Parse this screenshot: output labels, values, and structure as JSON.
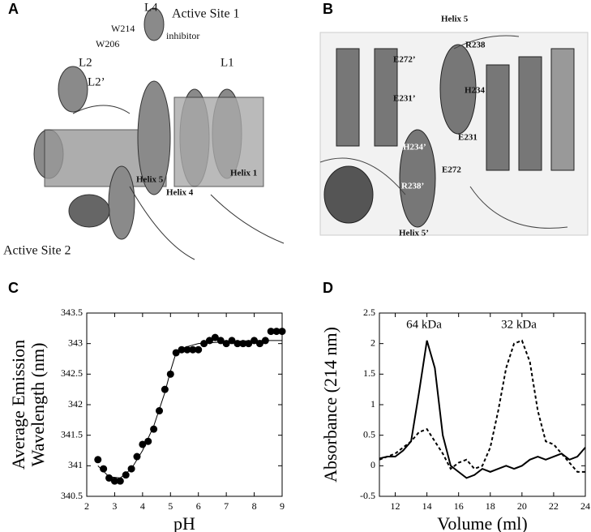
{
  "panels": [
    "A",
    "B",
    "C",
    "D"
  ],
  "structure_a": {
    "labels": [
      "L4",
      "Active Site 1",
      "W214",
      "W206",
      "inhibitor",
      "L2",
      "L1",
      "L2’",
      "Helix 5",
      "Helix 4",
      "Helix 1",
      "Active Site 2"
    ]
  },
  "structure_b": {
    "labels": [
      "Helix 5",
      "R238",
      "E272’",
      "E231’",
      "H234",
      "H234’",
      "E231",
      "E272",
      "R238’",
      "Helix 5’"
    ]
  },
  "chart_data": [
    {
      "type": "scatter",
      "xlabel": "pH",
      "ylabel_lines": [
        "Average Emission",
        "Wavelength (nm)"
      ],
      "xlim": [
        2,
        9
      ],
      "xticks": [
        2,
        3,
        4,
        5,
        6,
        7,
        8,
        9
      ],
      "ylim": [
        340.5,
        343.5
      ],
      "yticks": [
        340.5,
        341,
        341.5,
        342,
        342.5,
        343,
        343.5
      ],
      "series": [
        {
          "type": "scatter",
          "color": "#000000",
          "x": [
            2.4,
            2.6,
            2.8,
            3.0,
            3.2,
            3.4,
            3.6,
            3.8,
            4.0,
            4.2,
            4.4,
            4.6,
            4.8,
            5.0,
            5.2,
            5.4,
            5.6,
            5.8,
            6.0,
            6.2,
            6.4,
            6.6,
            6.8,
            7.0,
            7.2,
            7.4,
            7.6,
            7.8,
            8.0,
            8.2,
            8.4,
            8.6,
            8.8,
            9.0
          ],
          "values": [
            341.1,
            340.95,
            340.8,
            340.75,
            340.75,
            340.85,
            340.95,
            341.15,
            341.35,
            341.4,
            341.6,
            341.9,
            342.25,
            342.5,
            342.85,
            342.9,
            342.9,
            342.9,
            342.9,
            343.0,
            343.05,
            343.1,
            343.05,
            343.0,
            343.05,
            343.0,
            343.0,
            343.0,
            343.05,
            343.0,
            343.05,
            343.2,
            343.2,
            343.2
          ]
        },
        {
          "type": "line",
          "color": "#000000",
          "dash": false,
          "x": [
            2.4,
            2.8,
            3.2,
            3.6,
            4.0,
            4.4,
            4.8,
            5.0,
            5.2,
            5.6,
            6.0,
            7.0,
            8.0,
            9.0
          ],
          "values": [
            341.0,
            340.82,
            340.8,
            340.95,
            341.25,
            341.65,
            342.2,
            342.55,
            342.85,
            342.95,
            343.0,
            343.03,
            343.05,
            343.05
          ]
        }
      ]
    },
    {
      "type": "line",
      "xlabel": "Volume (ml)",
      "ylabel_lines": [
        "Absorbance (214 nm)"
      ],
      "xlim": [
        11,
        24
      ],
      "xticks": [
        12,
        14,
        16,
        18,
        20,
        22,
        24
      ],
      "ylim": [
        -0.5,
        2.5
      ],
      "yticks": [
        -0.5,
        0,
        0.5,
        1,
        1.5,
        2,
        2.5
      ],
      "annotations": [
        "64 kDa",
        "32 kDa"
      ],
      "series": [
        {
          "type": "line",
          "color": "#000000",
          "dash": false,
          "x": [
            11,
            11.5,
            12,
            12.5,
            13,
            13.5,
            14,
            14.5,
            15,
            15.5,
            16,
            16.5,
            17,
            17.5,
            18,
            18.5,
            19,
            19.5,
            20,
            20.5,
            21,
            21.5,
            22,
            22.5,
            23,
            23.5,
            24
          ],
          "values": [
            0.12,
            0.15,
            0.15,
            0.25,
            0.4,
            1.2,
            2.05,
            1.6,
            0.5,
            0.0,
            -0.1,
            -0.2,
            -0.15,
            -0.05,
            -0.1,
            -0.05,
            0.0,
            -0.05,
            0.0,
            0.1,
            0.15,
            0.1,
            0.15,
            0.2,
            0.1,
            0.15,
            0.3
          ]
        },
        {
          "type": "line",
          "color": "#000000",
          "dash": true,
          "x": [
            11,
            11.5,
            12,
            12.5,
            13,
            13.5,
            14,
            14.5,
            15,
            15.5,
            16,
            16.5,
            17,
            17.5,
            18,
            18.5,
            19,
            19.5,
            20,
            20.5,
            21,
            21.5,
            22,
            22.5,
            23,
            23.5,
            24
          ],
          "values": [
            0.1,
            0.15,
            0.2,
            0.3,
            0.4,
            0.55,
            0.6,
            0.4,
            0.2,
            -0.05,
            0.05,
            0.1,
            -0.05,
            0.0,
            0.3,
            0.9,
            1.6,
            2.0,
            2.05,
            1.7,
            0.9,
            0.4,
            0.35,
            0.2,
            0.05,
            -0.1,
            -0.1
          ]
        }
      ]
    }
  ]
}
